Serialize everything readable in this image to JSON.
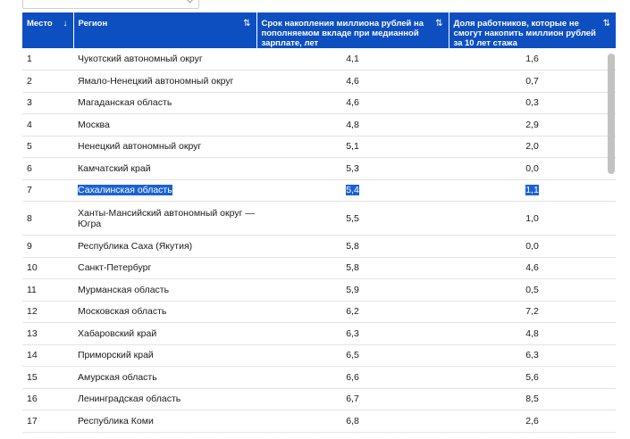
{
  "header": {
    "col_rank": "Место",
    "col_region": "Регион",
    "col_years": "Срок накопления миллиона рублей на пополняемом вкладе при медианной зарплате, лет",
    "col_share": "Доля работников, которые не смогут накопить миллион рублей за 10 лет стажа",
    "sort_desc_icon": "↓",
    "sort_icon": "⇅"
  },
  "rows": [
    {
      "rank": "1",
      "region": "Чукотский автономный округ",
      "years": "4,1",
      "share": "1,6"
    },
    {
      "rank": "2",
      "region": "Ямало-Ненецкий автономный округ",
      "years": "4,6",
      "share": "0,7"
    },
    {
      "rank": "3",
      "region": "Магаданская область",
      "years": "4,6",
      "share": "0,3"
    },
    {
      "rank": "4",
      "region": "Москва",
      "years": "4,8",
      "share": "2,9"
    },
    {
      "rank": "5",
      "region": "Ненецкий автономный округ",
      "years": "5,1",
      "share": "2,0"
    },
    {
      "rank": "6",
      "region": "Камчатский край",
      "years": "5,3",
      "share": "0,0"
    },
    {
      "rank": "7",
      "region": "Сахалинская область",
      "years": "5,4",
      "share": "1,1"
    },
    {
      "rank": "8",
      "region": "Ханты-Мансийский автономный округ — Югра",
      "years": "5,5",
      "share": "1,0"
    },
    {
      "rank": "9",
      "region": "Республика Саха (Якутия)",
      "years": "5,8",
      "share": "0,0"
    },
    {
      "rank": "10",
      "region": "Санкт-Петербург",
      "years": "5,8",
      "share": "4,6"
    },
    {
      "rank": "11",
      "region": "Мурманская область",
      "years": "5,9",
      "share": "0,5"
    },
    {
      "rank": "12",
      "region": "Московская область",
      "years": "6,2",
      "share": "7,2"
    },
    {
      "rank": "13",
      "region": "Хабаровский край",
      "years": "6,3",
      "share": "4,8"
    },
    {
      "rank": "14",
      "region": "Приморский край",
      "years": "6,5",
      "share": "6,3"
    },
    {
      "rank": "15",
      "region": "Амурская область",
      "years": "6,6",
      "share": "5,6"
    },
    {
      "rank": "16",
      "region": "Ленинградская область",
      "years": "6,7",
      "share": "8,5"
    },
    {
      "rank": "17",
      "region": "Республика Коми",
      "years": "6,8",
      "share": "2,6"
    }
  ],
  "selected_row_rank": "7",
  "colors": {
    "header_bg": "#0d4fc1",
    "selection": "#1a62d4"
  }
}
